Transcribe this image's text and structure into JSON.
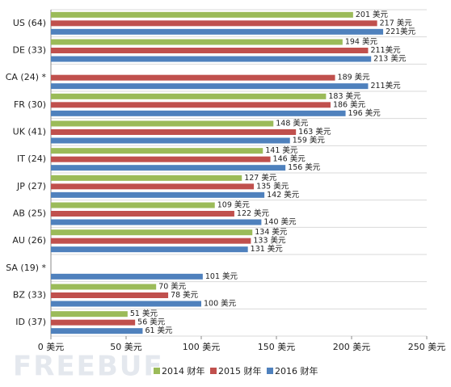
{
  "chart_data": {
    "type": "bar",
    "orientation": "horizontal",
    "categories": [
      "US (64)",
      "DE (33)",
      "CA (24) *",
      "FR (30)",
      "UK (41)",
      "IT (24)",
      "JP (27)",
      "AB (25)",
      "AU (26)",
      "SA (19) *",
      "BZ (33)",
      "ID (37)"
    ],
    "series": [
      {
        "name": "2014 财年",
        "color": "#9bbb59",
        "values": [
          201,
          194,
          null,
          183,
          148,
          141,
          127,
          109,
          134,
          null,
          70,
          51
        ],
        "value_labels": [
          "201 美元",
          "194 美元",
          null,
          "183 美元",
          "148 美元",
          "141 美元",
          "127 美元",
          "109 美元",
          "134 美元",
          null,
          "70 美元",
          "51 美元"
        ]
      },
      {
        "name": "2015 财年",
        "color": "#c0504d",
        "values": [
          217,
          211,
          189,
          186,
          163,
          146,
          135,
          122,
          133,
          null,
          78,
          56
        ],
        "value_labels": [
          "217 美元",
          "211美元",
          "189 美元",
          "186 美元",
          "163 美元",
          "146 美元",
          "135 美元",
          "122 美元",
          "133 美元",
          null,
          "78 美元",
          "56 美元"
        ]
      },
      {
        "name": "2016 财年",
        "color": "#4f81bd",
        "values": [
          221,
          213,
          211,
          196,
          159,
          156,
          142,
          140,
          131,
          101,
          100,
          61
        ],
        "value_labels": [
          "221美元",
          "213 美元",
          "211美元",
          "196 美元",
          "159 美元",
          "156 美元",
          "142 美元",
          "140 美元",
          "131 美元",
          "101 美元",
          "100 美元",
          "61 美元"
        ]
      }
    ],
    "xlim": [
      0,
      250
    ],
    "xticks": [
      {
        "value": 0,
        "label": "0 美元"
      },
      {
        "value": 50,
        "label": "50 美元"
      },
      {
        "value": 100,
        "label": "100 美元"
      },
      {
        "value": 150,
        "label": "150 美元"
      },
      {
        "value": 200,
        "label": "200 美元"
      },
      {
        "value": 250,
        "label": "250 美元"
      }
    ],
    "legend": "bottom",
    "watermark": "FREEBUF"
  }
}
